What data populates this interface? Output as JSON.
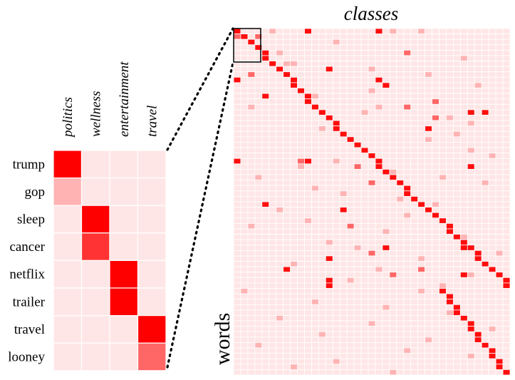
{
  "zoom_heatmap": {
    "columns": [
      "politics",
      "wellness",
      "entertainment",
      "travel"
    ],
    "rows": [
      "trump",
      "gop",
      "sleep",
      "cancer",
      "netflix",
      "trailer",
      "travel",
      "looney"
    ],
    "values": [
      [
        1.0,
        0.1,
        0.1,
        0.1
      ],
      [
        0.3,
        0.1,
        0.1,
        0.1
      ],
      [
        0.1,
        1.0,
        0.1,
        0.1
      ],
      [
        0.1,
        0.8,
        0.1,
        0.1
      ],
      [
        0.1,
        0.1,
        1.0,
        0.1
      ],
      [
        0.1,
        0.1,
        1.0,
        0.1
      ],
      [
        0.1,
        0.1,
        0.1,
        1.0
      ],
      [
        0.1,
        0.1,
        0.1,
        0.6
      ]
    ]
  },
  "full_matrix": {
    "title": "classes",
    "ylabel": "words",
    "n_cols": 39,
    "n_rows": 64,
    "base_intensity": 0.1,
    "strong": [
      [
        0,
        0
      ],
      [
        1,
        1
      ],
      [
        2,
        2
      ],
      [
        3,
        3
      ],
      [
        4,
        4
      ],
      [
        5,
        4
      ],
      [
        6,
        5
      ],
      [
        7,
        6
      ],
      [
        8,
        7
      ],
      [
        9,
        8
      ],
      [
        10,
        8
      ],
      [
        11,
        9
      ],
      [
        12,
        10
      ],
      [
        13,
        10
      ],
      [
        14,
        11
      ],
      [
        15,
        12
      ],
      [
        16,
        13
      ],
      [
        17,
        14
      ],
      [
        18,
        14
      ],
      [
        19,
        15
      ],
      [
        20,
        16
      ],
      [
        21,
        17
      ],
      [
        22,
        18
      ],
      [
        23,
        19
      ],
      [
        24,
        20
      ],
      [
        25,
        20
      ],
      [
        26,
        21
      ],
      [
        27,
        22
      ],
      [
        28,
        23
      ],
      [
        29,
        24
      ],
      [
        30,
        24
      ],
      [
        31,
        25
      ],
      [
        32,
        26
      ],
      [
        33,
        27
      ],
      [
        34,
        28
      ],
      [
        35,
        29
      ],
      [
        36,
        30
      ],
      [
        37,
        30
      ],
      [
        38,
        31
      ],
      [
        39,
        32
      ],
      [
        40,
        33
      ],
      [
        41,
        34
      ],
      [
        42,
        34
      ],
      [
        43,
        35
      ],
      [
        44,
        36
      ],
      [
        45,
        37
      ],
      [
        46,
        38
      ],
      [
        47,
        38
      ],
      [
        0,
        10
      ],
      [
        0,
        20
      ],
      [
        7,
        13
      ],
      [
        9,
        0
      ],
      [
        9,
        20
      ],
      [
        12,
        4
      ],
      [
        15,
        33
      ],
      [
        15,
        35
      ],
      [
        18,
        27
      ],
      [
        24,
        0
      ],
      [
        24,
        10
      ],
      [
        25,
        33
      ],
      [
        32,
        4
      ],
      [
        33,
        15
      ],
      [
        40,
        21
      ],
      [
        40,
        32
      ],
      [
        42,
        13
      ],
      [
        44,
        7
      ],
      [
        45,
        32
      ],
      [
        46,
        13
      ],
      [
        47,
        13
      ],
      [
        10,
        21
      ]
    ],
    "medium": [
      [
        1,
        0
      ],
      [
        4,
        24
      ],
      [
        1,
        3
      ],
      [
        2,
        2
      ],
      [
        14,
        24
      ],
      [
        16,
        28
      ],
      [
        22,
        18
      ],
      [
        24,
        9
      ],
      [
        25,
        17
      ],
      [
        26,
        21
      ],
      [
        28,
        19
      ],
      [
        36,
        16
      ],
      [
        40,
        21
      ],
      [
        41,
        19
      ],
      [
        44,
        26
      ],
      [
        45,
        22
      ],
      [
        8,
        2
      ],
      [
        13,
        28
      ]
    ],
    "light": [
      [
        0,
        5
      ],
      [
        0,
        22
      ],
      [
        0,
        26
      ],
      [
        2,
        14
      ],
      [
        4,
        6
      ],
      [
        5,
        32
      ],
      [
        6,
        7
      ],
      [
        6,
        8
      ],
      [
        7,
        19
      ],
      [
        8,
        27
      ],
      [
        10,
        34
      ],
      [
        11,
        19
      ],
      [
        12,
        11
      ],
      [
        14,
        2
      ],
      [
        14,
        20
      ],
      [
        15,
        18
      ],
      [
        16,
        30
      ],
      [
        17,
        33
      ],
      [
        18,
        12
      ],
      [
        19,
        31
      ],
      [
        20,
        27
      ],
      [
        22,
        18
      ],
      [
        22,
        33
      ],
      [
        23,
        36
      ],
      [
        24,
        14
      ],
      [
        25,
        9
      ],
      [
        26,
        22
      ],
      [
        27,
        3
      ],
      [
        27,
        29
      ],
      [
        28,
        35
      ],
      [
        29,
        11
      ],
      [
        30,
        15
      ],
      [
        31,
        23
      ],
      [
        32,
        28
      ],
      [
        33,
        6
      ],
      [
        34,
        24
      ],
      [
        35,
        10
      ],
      [
        36,
        2
      ],
      [
        37,
        21
      ],
      [
        38,
        32
      ],
      [
        39,
        13
      ],
      [
        40,
        17
      ],
      [
        41,
        37
      ],
      [
        42,
        26
      ],
      [
        43,
        8
      ],
      [
        44,
        20
      ],
      [
        45,
        33
      ],
      [
        46,
        16
      ],
      [
        47,
        29
      ],
      [
        48,
        1
      ],
      [
        48,
        26
      ],
      [
        50,
        11
      ],
      [
        51,
        21
      ],
      [
        52,
        30
      ],
      [
        53,
        6
      ],
      [
        54,
        19
      ],
      [
        55,
        36
      ],
      [
        56,
        12
      ],
      [
        57,
        27
      ],
      [
        58,
        3
      ],
      [
        59,
        24
      ],
      [
        60,
        33
      ],
      [
        61,
        14
      ],
      [
        62,
        8
      ],
      [
        63,
        22
      ]
    ]
  }
}
